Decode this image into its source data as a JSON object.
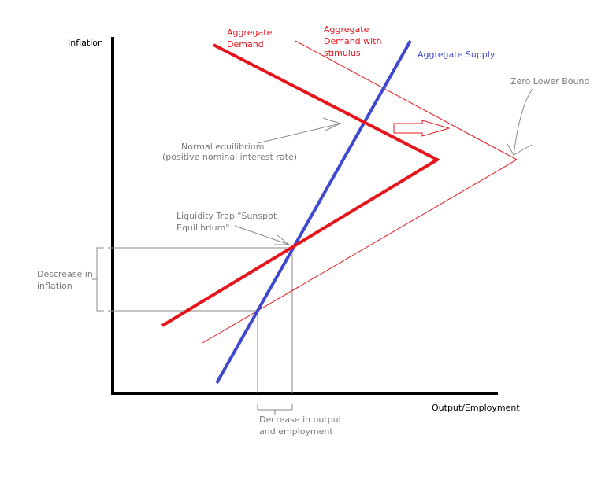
{
  "axes": {
    "y_label": "Inflation",
    "x_label": "Output/Employment"
  },
  "curves": {
    "aggregate_demand": {
      "label_lines": [
        "Aggregate",
        "Demand"
      ]
    },
    "aggregate_demand_stimulus": {
      "label_lines": [
        "Aggregate",
        "Demand with",
        "stimulus"
      ]
    },
    "aggregate_supply": {
      "label": "Aggregate Supply"
    }
  },
  "annotations": {
    "zero_lower_bound": "Zero Lower Bound",
    "normal_equilibrium": [
      "Normal equilibrium",
      "(positive nominal interest rate)"
    ],
    "liquidity_trap": [
      "Liquidity Trap \"Sunspot",
      "Equilibrium\""
    ],
    "decrease_inflation": [
      "Descrease in",
      "inflation"
    ],
    "decrease_output": [
      "Decrease in output",
      "and employment"
    ]
  },
  "colors": {
    "axis": "#000000",
    "demand": "#e8141c",
    "supply": "#3f49cf",
    "guide": "#8a8a8a",
    "annotation": "#7a7a7a"
  }
}
